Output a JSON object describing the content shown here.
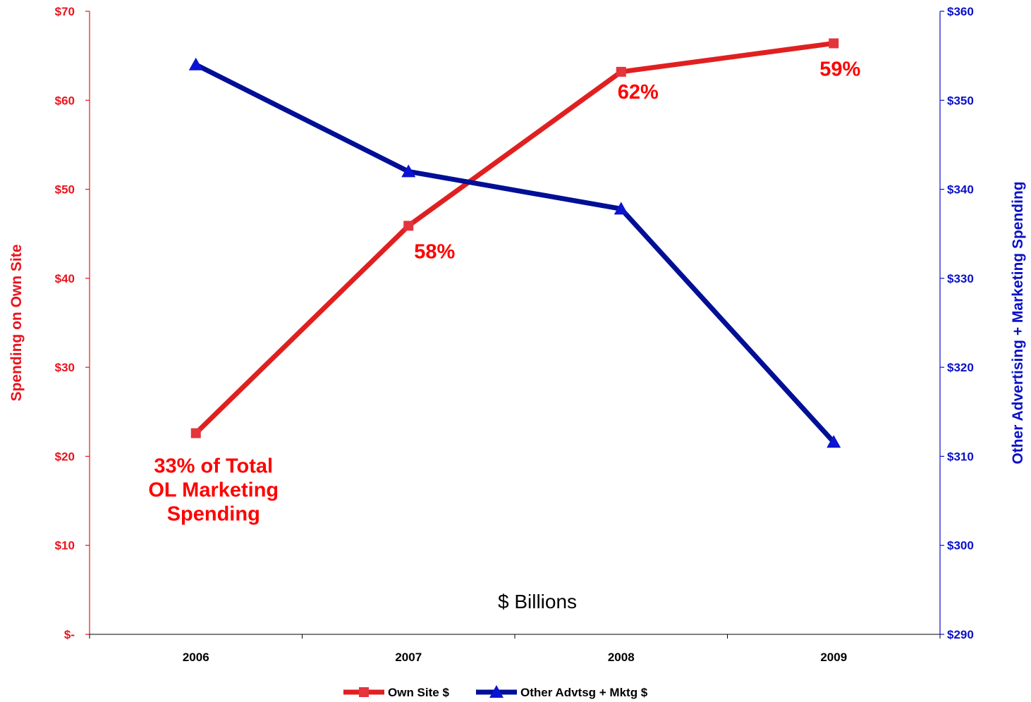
{
  "chart_data": {
    "type": "line",
    "categories": [
      "2006",
      "2007",
      "2008",
      "2009"
    ],
    "series": [
      {
        "name": "Own Site $",
        "axis": "left",
        "color": "#e02020",
        "marker": "square",
        "values": [
          22.6,
          45.9,
          63.2,
          66.4
        ]
      },
      {
        "name": "Other Advtsg + Mktg $",
        "axis": "right",
        "color": "#000f96",
        "marker": "triangle",
        "values": [
          354.0,
          342.0,
          337.8,
          311.6
        ]
      }
    ],
    "y_left": {
      "label": "Spending on Own Site",
      "range": [
        0,
        70
      ],
      "ticks": [
        0,
        10,
        20,
        30,
        40,
        50,
        60,
        70
      ],
      "tick_labels": [
        "$-",
        "$10",
        "$20",
        "$30",
        "$40",
        "$50",
        "$60",
        "$70"
      ],
      "color": "#e8141e"
    },
    "y_right": {
      "label": "Other Advertising + Marketing Spending",
      "range": [
        290,
        360
      ],
      "ticks": [
        290,
        300,
        310,
        320,
        330,
        340,
        350,
        360
      ],
      "tick_labels": [
        "$290",
        "$300",
        "$310",
        "$320",
        "$330",
        "$340",
        "$350",
        "$360"
      ],
      "color": "#0a10c8"
    },
    "annotations": [
      {
        "lines": [
          "33% of Total",
          "OL Marketing",
          "Spending"
        ],
        "category": "2006"
      },
      {
        "lines": [
          "58%"
        ],
        "category": "2007"
      },
      {
        "lines": [
          "62%"
        ],
        "category": "2008"
      },
      {
        "lines": [
          "59%"
        ],
        "category": "2009"
      }
    ],
    "unit_label": "$ Billions",
    "grid": false,
    "legend_position": "bottom"
  }
}
